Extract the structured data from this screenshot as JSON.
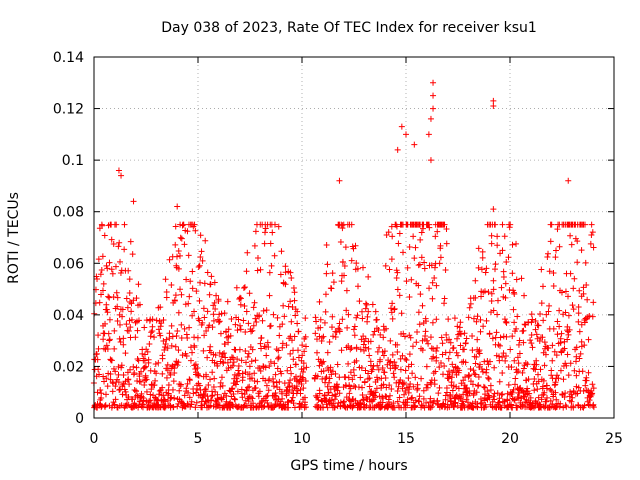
{
  "chart_data": {
    "type": "scatter",
    "title": "Day 038 of 2023, Rate Of TEC Index for receiver ksu1",
    "xlabel": "GPS time / hours",
    "ylabel": "ROTI / TECUs",
    "xlim": [
      0,
      25
    ],
    "ylim": [
      0,
      0.14
    ],
    "xticks": [
      "0",
      "5",
      "10",
      "15",
      "20",
      "25"
    ],
    "yticks": [
      "0",
      "0.02",
      "0.04",
      "0.06",
      "0.08",
      "0.1",
      "0.12",
      "0.14"
    ],
    "grid": true,
    "marker": "plus",
    "series_color": "#ff0000",
    "highlighted_points": [
      {
        "x": 1.2,
        "y": 0.096
      },
      {
        "x": 1.3,
        "y": 0.094
      },
      {
        "x": 1.9,
        "y": 0.084
      },
      {
        "x": 4.0,
        "y": 0.082
      },
      {
        "x": 11.8,
        "y": 0.092
      },
      {
        "x": 14.8,
        "y": 0.113
      },
      {
        "x": 15.0,
        "y": 0.11
      },
      {
        "x": 14.6,
        "y": 0.104
      },
      {
        "x": 15.4,
        "y": 0.106
      },
      {
        "x": 16.3,
        "y": 0.13
      },
      {
        "x": 16.3,
        "y": 0.125
      },
      {
        "x": 16.3,
        "y": 0.12
      },
      {
        "x": 16.2,
        "y": 0.116
      },
      {
        "x": 16.1,
        "y": 0.11
      },
      {
        "x": 16.2,
        "y": 0.1
      },
      {
        "x": 19.2,
        "y": 0.123
      },
      {
        "x": 19.2,
        "y": 0.121
      },
      {
        "x": 19.2,
        "y": 0.081
      },
      {
        "x": 22.8,
        "y": 0.092
      }
    ]
  }
}
